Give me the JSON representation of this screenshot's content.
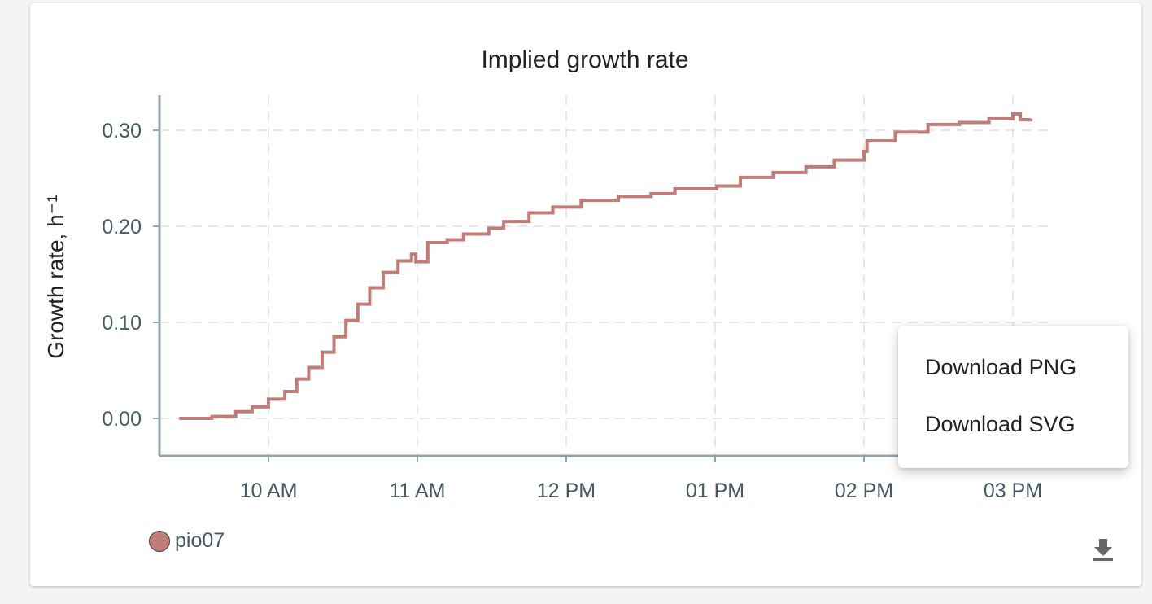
{
  "chart_data": {
    "type": "line",
    "title": "Implied growth rate",
    "xlabel": "",
    "ylabel": "Growth rate, h⁻¹",
    "x_unit": "hour of day",
    "xlim": [
      9.3,
      15.25
    ],
    "ylim": [
      -0.038,
      0.338
    ],
    "grid": true,
    "line_style": "step",
    "x_ticks": [
      {
        "value": 10,
        "label": "10 AM"
      },
      {
        "value": 11,
        "label": "11 AM"
      },
      {
        "value": 12,
        "label": "12 PM"
      },
      {
        "value": 13,
        "label": "01 PM"
      },
      {
        "value": 14,
        "label": "02 PM"
      },
      {
        "value": 15,
        "label": "03 PM"
      }
    ],
    "y_ticks": [
      {
        "value": 0,
        "label": "0.00"
      },
      {
        "value": 0.1,
        "label": "0.10"
      },
      {
        "value": 0.2,
        "label": "0.20"
      },
      {
        "value": 0.3,
        "label": "0.30"
      }
    ],
    "legend_position": "bottom-left",
    "series": [
      {
        "name": "pio07",
        "color": "#c07c78",
        "x": [
          9.4,
          9.62,
          9.78,
          9.89,
          10.0,
          10.11,
          10.19,
          10.27,
          10.36,
          10.44,
          10.52,
          10.6,
          10.68,
          10.77,
          10.87,
          10.96,
          10.99,
          11.07,
          11.2,
          11.31,
          11.48,
          11.58,
          11.75,
          11.91,
          12.1,
          12.35,
          12.57,
          12.73,
          13.01,
          13.17,
          13.39,
          13.61,
          13.8,
          14.0,
          14.02,
          14.21,
          14.43,
          14.64,
          14.84,
          15.0,
          15.05,
          15.12
        ],
        "y": [
          0.0,
          0.002,
          0.007,
          0.012,
          0.02,
          0.028,
          0.041,
          0.053,
          0.069,
          0.085,
          0.102,
          0.119,
          0.136,
          0.152,
          0.164,
          0.171,
          0.163,
          0.183,
          0.186,
          0.192,
          0.198,
          0.205,
          0.214,
          0.22,
          0.227,
          0.231,
          0.234,
          0.239,
          0.242,
          0.251,
          0.256,
          0.262,
          0.269,
          0.278,
          0.289,
          0.298,
          0.306,
          0.308,
          0.312,
          0.317,
          0.311,
          0.312
        ]
      }
    ]
  },
  "menu": {
    "items": [
      "Download PNG",
      "Download SVG"
    ]
  },
  "icons": {
    "download": "download-icon"
  }
}
